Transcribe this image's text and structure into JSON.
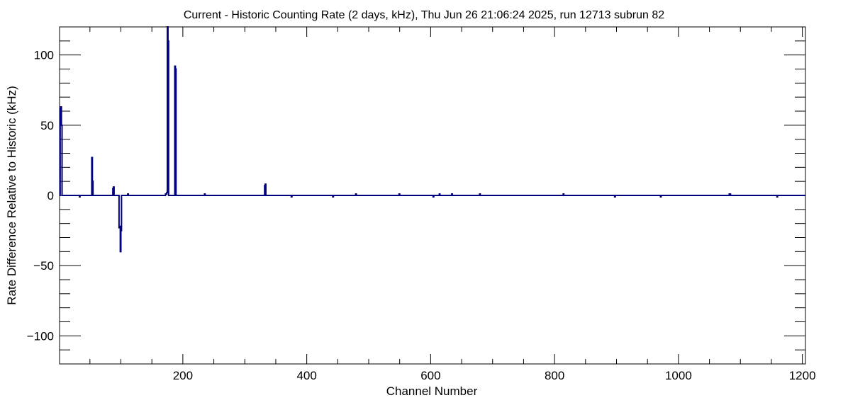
{
  "chart_data": {
    "type": "line",
    "title": "Current - Historic Counting Rate (2 days, kHz), Thu Jun 26 21:06:24 2025, run 12713 subrun 82",
    "xlabel": "Channel Number",
    "ylabel": "Rate Difference Relative to Historic (kHz)",
    "xlim": [
      1,
      1205
    ],
    "ylim": [
      -120,
      120
    ],
    "x_ticks": [
      200,
      400,
      600,
      800,
      1000,
      1200
    ],
    "y_ticks": [
      -100,
      -50,
      0,
      50,
      100
    ],
    "grid": false,
    "legend": "none",
    "line_color": "#000080",
    "series": [
      {
        "points": [
          [
            1,
            0
          ],
          [
            2,
            62
          ],
          [
            3,
            63
          ],
          [
            4,
            50
          ],
          [
            5,
            0
          ],
          [
            32,
            0
          ],
          [
            33,
            -1
          ],
          [
            34,
            0
          ],
          [
            52,
            0
          ],
          [
            53,
            27
          ],
          [
            54,
            10
          ],
          [
            55,
            0
          ],
          [
            86,
            0
          ],
          [
            87,
            5
          ],
          [
            88,
            6
          ],
          [
            89,
            0
          ],
          [
            96,
            0
          ],
          [
            97,
            -23
          ],
          [
            98,
            -22
          ],
          [
            99,
            -40
          ],
          [
            100,
            -25
          ],
          [
            101,
            0
          ],
          [
            110,
            0
          ],
          [
            111,
            1
          ],
          [
            112,
            0
          ],
          [
            171,
            0
          ],
          [
            172,
            1
          ],
          [
            173,
            1
          ],
          [
            174,
            2
          ],
          [
            175,
            120
          ],
          [
            176,
            110
          ],
          [
            177,
            0
          ],
          [
            186,
            0
          ],
          [
            187,
            92
          ],
          [
            188,
            90
          ],
          [
            189,
            0
          ],
          [
            234,
            0
          ],
          [
            235,
            1
          ],
          [
            236,
            0
          ],
          [
            331,
            0
          ],
          [
            332,
            7
          ],
          [
            333,
            8
          ],
          [
            334,
            0
          ],
          [
            374,
            0
          ],
          [
            375,
            -1
          ],
          [
            376,
            0
          ],
          [
            441,
            0
          ],
          [
            442,
            -1
          ],
          [
            443,
            0
          ],
          [
            478,
            0
          ],
          [
            479,
            1
          ],
          [
            480,
            0
          ],
          [
            548,
            0
          ],
          [
            549,
            1
          ],
          [
            550,
            0
          ],
          [
            603,
            0
          ],
          [
            604,
            -1
          ],
          [
            605,
            0
          ],
          [
            613,
            0
          ],
          [
            614,
            1
          ],
          [
            615,
            0
          ],
          [
            633,
            0
          ],
          [
            634,
            1
          ],
          [
            635,
            0
          ],
          [
            678,
            0
          ],
          [
            679,
            1
          ],
          [
            680,
            0
          ],
          [
            813,
            0
          ],
          [
            814,
            1
          ],
          [
            815,
            0
          ],
          [
            896,
            0
          ],
          [
            897,
            -1
          ],
          [
            898,
            0
          ],
          [
            970,
            0
          ],
          [
            971,
            -1
          ],
          [
            972,
            0
          ],
          [
            1081,
            0
          ],
          [
            1082,
            1
          ],
          [
            1083,
            1
          ],
          [
            1084,
            0
          ],
          [
            1158,
            0
          ],
          [
            1159,
            -1
          ],
          [
            1160,
            0
          ],
          [
            1205,
            0
          ]
        ]
      }
    ]
  }
}
